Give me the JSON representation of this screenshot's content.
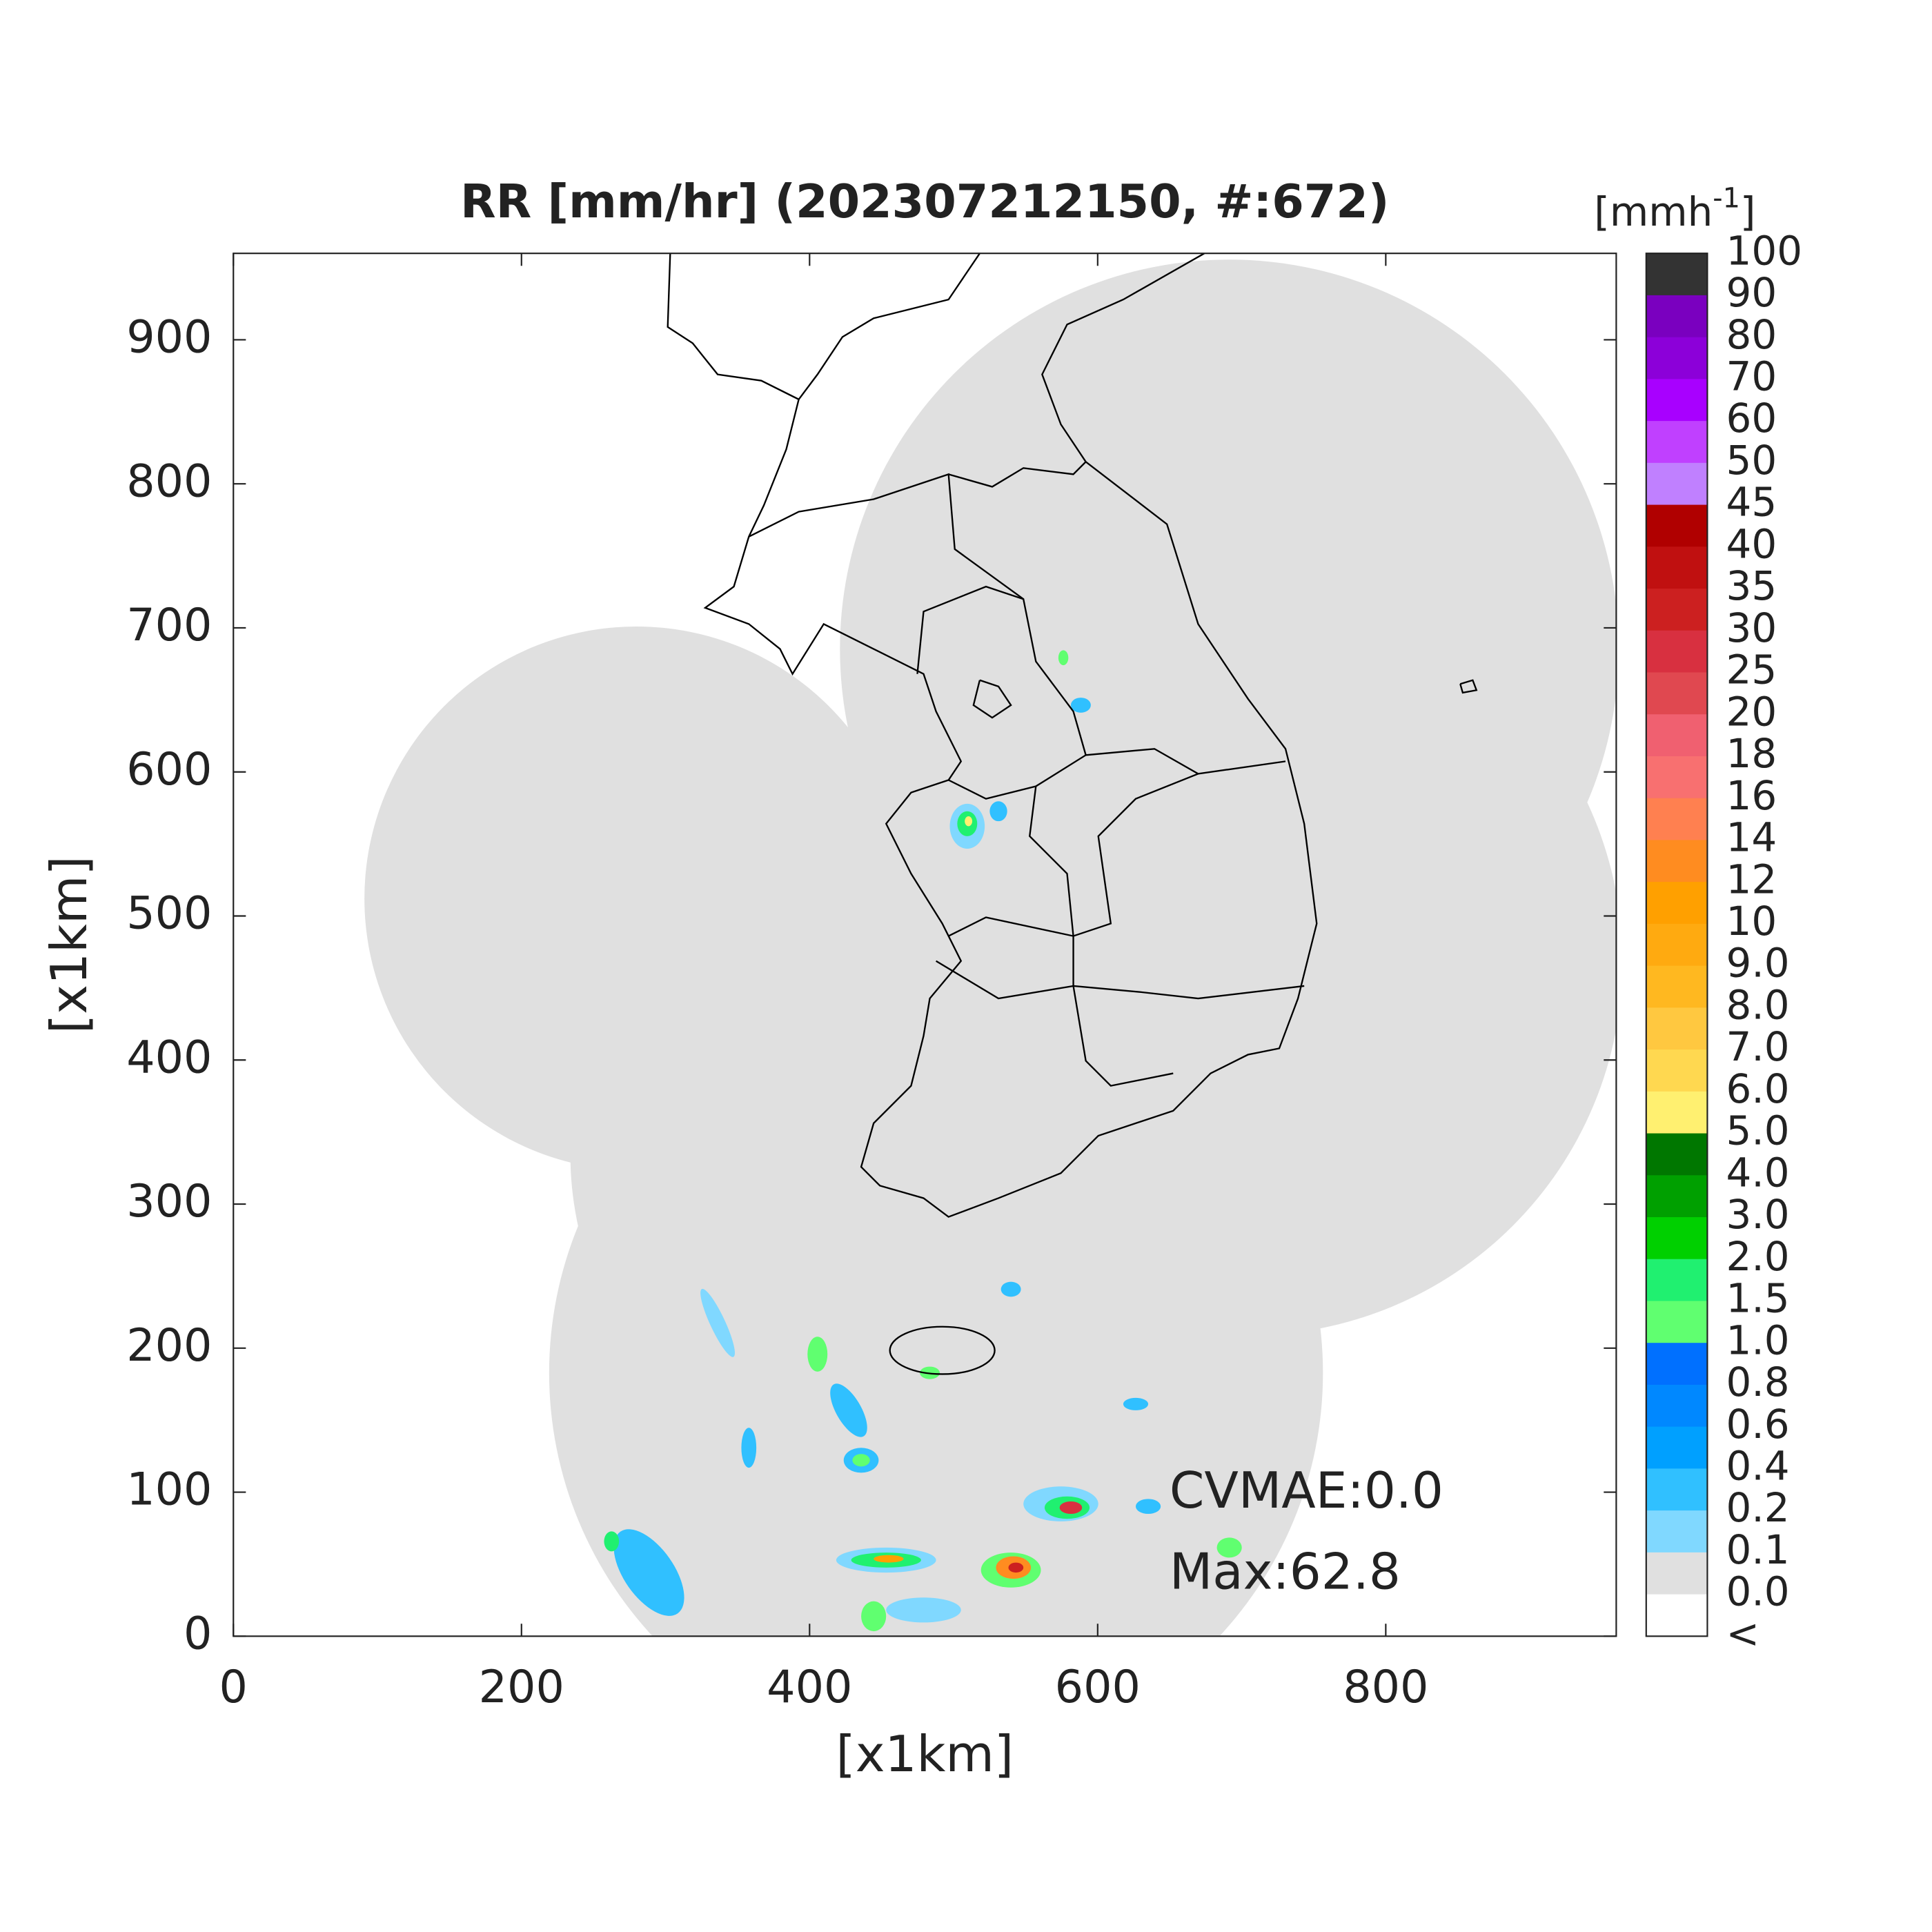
{
  "title": "RR [mm/hr] (202307212150, #:672)",
  "axes": {
    "xlabel": "[x1km]",
    "ylabel": "[x1km]",
    "xlim": [
      0,
      960
    ],
    "ylim": [
      0,
      960
    ],
    "xticks": [
      0,
      200,
      400,
      600,
      800
    ],
    "yticks": [
      0,
      100,
      200,
      300,
      400,
      500,
      600,
      700,
      800,
      900
    ]
  },
  "annotations": [
    "CVMAE:0.0",
    "Max:62.8"
  ],
  "colorbar": {
    "unit_base": "[mmh",
    "unit_exponent": "-1",
    "unit_close": "]",
    "labels": [
      "100",
      "90",
      "80",
      "70",
      "60",
      "50",
      "45",
      "40",
      "35",
      "30",
      "25",
      "20",
      "18",
      "16",
      "14",
      "12",
      "10",
      "9.0",
      "8.0",
      "7.0",
      "6.0",
      "5.0",
      "4.0",
      "3.0",
      "2.0",
      "1.5",
      "1.0",
      "0.8",
      "0.6",
      "0.4",
      "0.2",
      "0.1",
      "0.0",
      "<"
    ],
    "colors": [
      "#333333",
      "#7a00bf",
      "#8c00d9",
      "#a800ff",
      "#c040ff",
      "#c080ff",
      "#b00000",
      "#c01010",
      "#cc2020",
      "#d83040",
      "#e04850",
      "#f06070",
      "#f87070",
      "#ff8050",
      "#ff8c20",
      "#ffa000",
      "#ffaa10",
      "#ffb820",
      "#ffc840",
      "#ffd850",
      "#fff070",
      "#007700",
      "#00a000",
      "#00d000",
      "#20f070",
      "#60ff70",
      "#0070ff",
      "#0088ff",
      "#00a0ff",
      "#30c0ff",
      "#80d8ff",
      "#e0e0e0",
      "#ffffff"
    ]
  }
}
